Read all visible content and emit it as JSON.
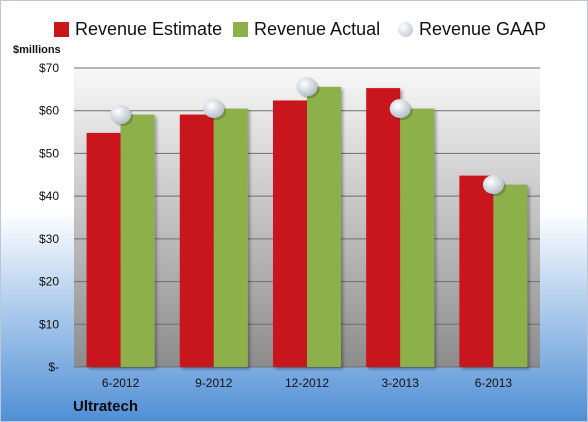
{
  "colors": {
    "estimate": "#c8161d",
    "actual": "#8db04b",
    "gaap": "#d3d8e2",
    "plot_top": "#f8f8f8",
    "plot_bottom": "#8c8c8c",
    "bg_top": "#ffffff",
    "bg_bottom": "#4f8fd6"
  },
  "company": "Ultratech",
  "unit_label": "$millions",
  "legend": [
    {
      "key": "estimate",
      "label": "Revenue Estimate",
      "marker": "square"
    },
    {
      "key": "actual",
      "label": "Revenue Actual",
      "marker": "square"
    },
    {
      "key": "gaap",
      "label": "Revenue GAAP",
      "marker": "circle"
    }
  ],
  "chart_data": {
    "type": "bar",
    "categories": [
      "6-2012",
      "9-2012",
      "12-2012",
      "3-2013",
      "6-2013"
    ],
    "series": [
      {
        "name": "Revenue Estimate",
        "key": "estimate",
        "kind": "bar",
        "values": [
          54.8,
          59.1,
          62.4,
          65.3,
          44.8
        ]
      },
      {
        "name": "Revenue Actual",
        "key": "actual",
        "kind": "bar",
        "values": [
          59.1,
          60.5,
          65.6,
          60.5,
          42.7
        ]
      },
      {
        "name": "Revenue GAAP",
        "key": "gaap",
        "kind": "marker",
        "values": [
          59.1,
          60.5,
          65.6,
          60.5,
          42.7
        ]
      }
    ],
    "ylim": [
      0,
      70
    ],
    "yticks": [
      0,
      10,
      20,
      30,
      40,
      50,
      60,
      70
    ],
    "ytick_labels": [
      "$-",
      "$10",
      "$20",
      "$30",
      "$40",
      "$50",
      "$60",
      "$70"
    ],
    "grid": true,
    "legend_position": "top"
  }
}
